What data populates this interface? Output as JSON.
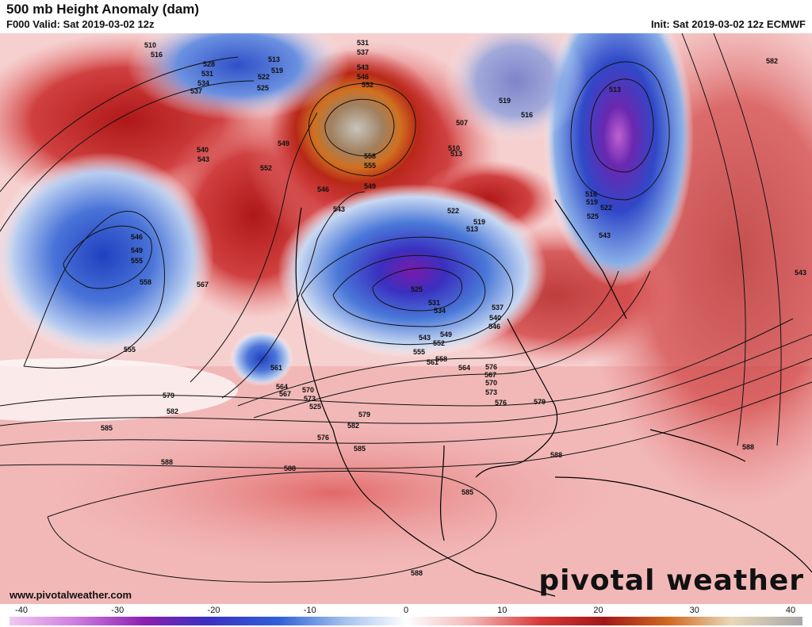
{
  "header": {
    "title": "500 mb Height Anomaly (dam)",
    "valid": "F000 Valid: Sat 2019-03-02 12z",
    "init": "Init: Sat 2019-03-02 12z ECMWF"
  },
  "footer": {
    "url": "www.pivotalweather.com",
    "logo": "pivotal weather"
  },
  "colorbar": {
    "ticks": [
      "-40",
      "-30",
      "-20",
      "-10",
      "0",
      "10",
      "20",
      "30",
      "40"
    ],
    "colors": [
      "#e8a8e8",
      "#c060d0",
      "#7a20a8",
      "#4030c0",
      "#3060d8",
      "#80a8e8",
      "#d8e4f4",
      "#ffffff",
      "#f8d8d8",
      "#e88080",
      "#c82020",
      "#a01818",
      "#c06020",
      "#e0a040",
      "#d8d0c0",
      "#b0b0b0"
    ]
  },
  "contour_labels": [
    {
      "text": "510"
    },
    {
      "text": "516"
    },
    {
      "text": "528"
    },
    {
      "text": "531"
    },
    {
      "text": "534"
    },
    {
      "text": "537"
    },
    {
      "text": "540"
    },
    {
      "text": "543"
    },
    {
      "text": "549"
    },
    {
      "text": "552"
    },
    {
      "text": "513"
    },
    {
      "text": "519"
    },
    {
      "text": "522"
    },
    {
      "text": "525"
    },
    {
      "text": "531"
    },
    {
      "text": "537"
    },
    {
      "text": "543"
    },
    {
      "text": "546"
    },
    {
      "text": "552"
    },
    {
      "text": "558"
    },
    {
      "text": "555"
    },
    {
      "text": "549"
    },
    {
      "text": "507"
    },
    {
      "text": "510"
    },
    {
      "text": "513"
    },
    {
      "text": "519"
    },
    {
      "text": "516"
    },
    {
      "text": "513"
    },
    {
      "text": "582"
    },
    {
      "text": "516"
    },
    {
      "text": "519"
    },
    {
      "text": "522"
    },
    {
      "text": "525"
    },
    {
      "text": "543"
    },
    {
      "text": "546"
    },
    {
      "text": "543"
    },
    {
      "text": "546"
    },
    {
      "text": "549"
    },
    {
      "text": "555"
    },
    {
      "text": "558"
    },
    {
      "text": "567"
    },
    {
      "text": "555"
    },
    {
      "text": "561"
    },
    {
      "text": "564"
    },
    {
      "text": "567"
    },
    {
      "text": "570"
    },
    {
      "text": "573"
    },
    {
      "text": "525"
    },
    {
      "text": "522"
    },
    {
      "text": "519"
    },
    {
      "text": "513"
    },
    {
      "text": "525"
    },
    {
      "text": "531"
    },
    {
      "text": "534"
    },
    {
      "text": "537"
    },
    {
      "text": "540"
    },
    {
      "text": "546"
    },
    {
      "text": "543"
    },
    {
      "text": "549"
    },
    {
      "text": "552"
    },
    {
      "text": "555"
    },
    {
      "text": "558"
    },
    {
      "text": "561"
    },
    {
      "text": "564"
    },
    {
      "text": "567"
    },
    {
      "text": "570"
    },
    {
      "text": "573"
    },
    {
      "text": "576"
    },
    {
      "text": "579"
    },
    {
      "text": "576"
    },
    {
      "text": "579"
    },
    {
      "text": "582"
    },
    {
      "text": "576"
    },
    {
      "text": "579"
    },
    {
      "text": "582"
    },
    {
      "text": "585"
    },
    {
      "text": "585"
    },
    {
      "text": "588"
    },
    {
      "text": "588"
    },
    {
      "text": "585"
    },
    {
      "text": "588"
    },
    {
      "text": "588"
    },
    {
      "text": "588"
    },
    {
      "text": "543"
    }
  ]
}
